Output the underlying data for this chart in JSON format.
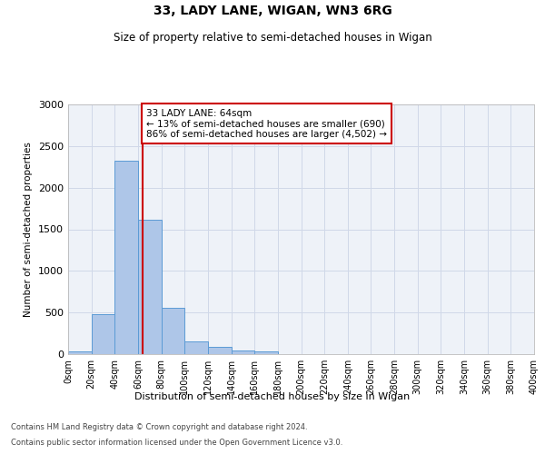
{
  "title1": "33, LADY LANE, WIGAN, WN3 6RG",
  "title2": "Size of property relative to semi-detached houses in Wigan",
  "xlabel": "Distribution of semi-detached houses by size in Wigan",
  "ylabel": "Number of semi-detached properties",
  "bin_edges": [
    0,
    20,
    40,
    60,
    80,
    100,
    120,
    140,
    160,
    180,
    200,
    220,
    240,
    260,
    280,
    300,
    320,
    340,
    360,
    380,
    400
  ],
  "bar_values": [
    30,
    480,
    2320,
    1620,
    560,
    155,
    85,
    45,
    30,
    5,
    0,
    0,
    0,
    0,
    0,
    0,
    0,
    0,
    0,
    0
  ],
  "bar_color": "#aec6e8",
  "bar_edge_color": "#5b9bd5",
  "grid_color": "#d0d8e8",
  "property_size": 64,
  "annotation_title": "33 LADY LANE: 64sqm",
  "annotation_line1": "← 13% of semi-detached houses are smaller (690)",
  "annotation_line2": "86% of semi-detached houses are larger (4,502) →",
  "vline_color": "#cc0000",
  "annotation_box_color": "#ffffff",
  "annotation_box_edge": "#cc0000",
  "ylim": [
    0,
    3000
  ],
  "yticks": [
    0,
    500,
    1000,
    1500,
    2000,
    2500,
    3000
  ],
  "footer1": "Contains HM Land Registry data © Crown copyright and database right 2024.",
  "footer2": "Contains public sector information licensed under the Open Government Licence v3.0.",
  "bg_color": "#eef2f8",
  "fig_width": 6.0,
  "fig_height": 5.0,
  "dpi": 100
}
